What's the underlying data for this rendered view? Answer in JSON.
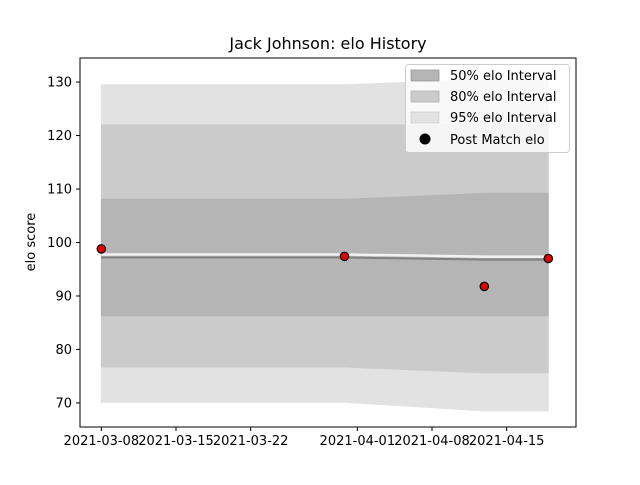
{
  "chart_data": {
    "type": "area",
    "title": "Jack Johnson: elo History",
    "xlabel": "",
    "ylabel": "elo score",
    "x_tick_labels": [
      "2021-03-08",
      "2021-03-15",
      "2021-03-22",
      "2021-04-01",
      "2021-04-08",
      "2021-04-15"
    ],
    "x_tick_days": [
      8,
      15,
      22,
      32,
      39,
      46
    ],
    "x_range_days": [
      6,
      52.5
    ],
    "y_ticks": [
      70,
      80,
      90,
      100,
      110,
      120,
      130
    ],
    "ylim": [
      65.5,
      134.5
    ],
    "grid": false,
    "legend_position": "top-right",
    "legend": [
      {
        "label": "50% elo Interval",
        "color": "#b5b5b5"
      },
      {
        "label": "80% elo Interval",
        "color": "#cbcbcb"
      },
      {
        "label": "95% elo Interval",
        "color": "#e2e2e2"
      },
      {
        "label": "Post Match elo",
        "color": "#000000"
      }
    ],
    "series": {
      "days": [
        8,
        30.8,
        43.9,
        49.9
      ],
      "mean": [
        97.2,
        97.2,
        96.8,
        96.8
      ],
      "band_50": {
        "lower": [
          86.3,
          86.3,
          86.3,
          86.3
        ],
        "upper": [
          108.1,
          108.1,
          109.2,
          109.2
        ]
      },
      "band_80": {
        "lower": [
          76.7,
          76.7,
          75.6,
          75.6
        ],
        "upper": [
          122.0,
          122.0,
          122.0,
          122.0
        ]
      },
      "band_95": {
        "lower": [
          70.1,
          70.1,
          68.5,
          68.5
        ],
        "upper": [
          129.5,
          129.5,
          130.5,
          130.5
        ]
      }
    },
    "post_match_points": [
      {
        "day": 8,
        "elo": 98.8
      },
      {
        "day": 30.8,
        "elo": 97.4
      },
      {
        "day": 43.9,
        "elo": 91.8
      },
      {
        "day": 49.9,
        "elo": 97.0
      }
    ],
    "point_color": "#e00000",
    "mean_line_color": "#808080"
  }
}
